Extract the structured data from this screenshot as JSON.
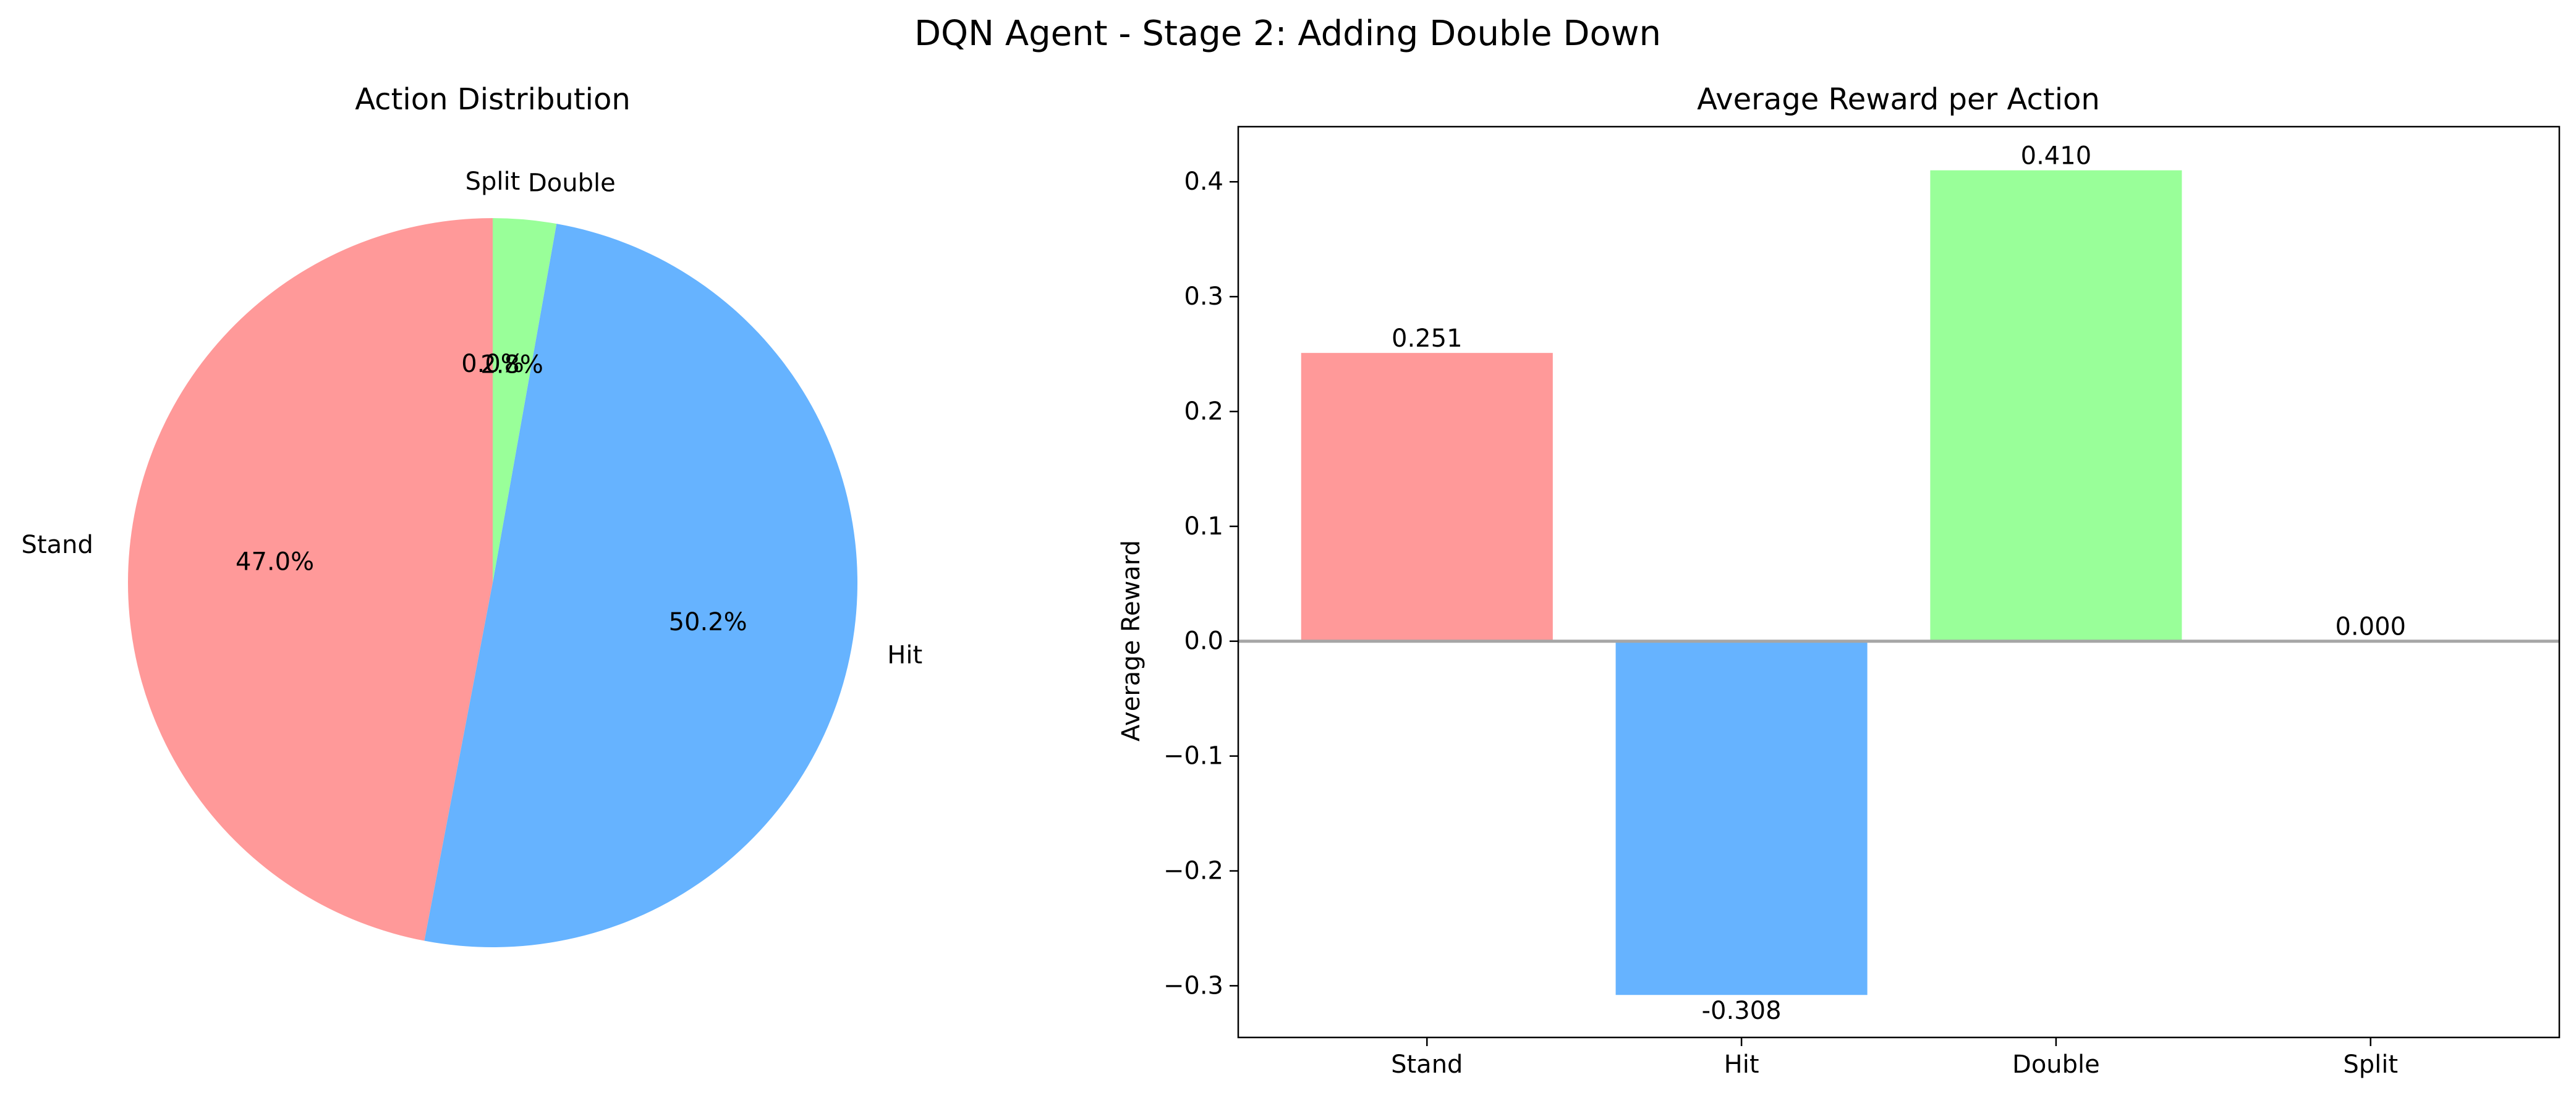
{
  "figure": {
    "title": "DQN Agent - Stage 2: Adding Double Down"
  },
  "colors": {
    "stand": "#ff9999",
    "hit": "#66b3ff",
    "double": "#99ff99",
    "split": "#ffcc99",
    "zero_line": "#a6a6a6",
    "axis": "#000000"
  },
  "chart_data": [
    {
      "type": "pie",
      "title": "Action Distribution",
      "labels": [
        "Stand",
        "Hit",
        "Double",
        "Split"
      ],
      "values": [
        47.0,
        50.2,
        2.8,
        0.0
      ],
      "autopct": [
        "47.0%",
        "50.2%",
        "2.8%",
        "0.0%"
      ],
      "start_angle_deg": 90,
      "direction": "counterclockwise"
    },
    {
      "type": "bar",
      "title": "Average Reward per Action",
      "xlabel": "",
      "ylabel": "Average Reward",
      "categories": [
        "Stand",
        "Hit",
        "Double",
        "Split"
      ],
      "values": [
        0.251,
        -0.308,
        0.41,
        0.0
      ],
      "value_labels": [
        "0.251",
        "-0.308",
        "0.410",
        "0.000"
      ],
      "ylim": [
        -0.345,
        0.448
      ],
      "yticks": [
        -0.3,
        -0.2,
        -0.1,
        0.0,
        0.1,
        0.2,
        0.3,
        0.4
      ],
      "ytick_labels": [
        "−0.3",
        "−0.2",
        "−0.1",
        "0.0",
        "0.1",
        "0.2",
        "0.3",
        "0.4"
      ],
      "grid": false,
      "zero_line": true
    }
  ]
}
